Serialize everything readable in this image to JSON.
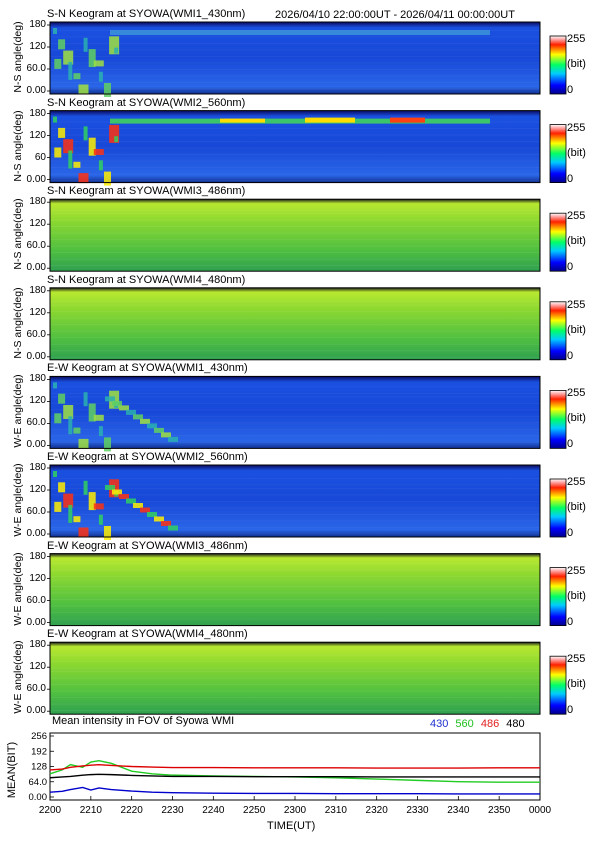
{
  "header": {
    "time_range": "2026/04/10 22:00:00UT - 2026/04/11 00:00:00UT"
  },
  "colorbar": {
    "max_label": "255",
    "unit_label": "(bit)",
    "min_label": "0"
  },
  "keograms": [
    {
      "title": "S-N Keogram at SYOWA(WMI1_430nm)",
      "ylabel": "N-S angle(deg)",
      "yticks": [
        "180",
        "120",
        "60.0",
        "0.00"
      ],
      "base": "blue",
      "aurora": "moderate"
    },
    {
      "title": "S-N Keogram at SYOWA(WMI2_560nm)",
      "ylabel": "N-S angle(deg)",
      "yticks": [
        "180",
        "120",
        "60",
        "0.00"
      ],
      "base": "blue",
      "aurora": "strong"
    },
    {
      "title": "S-N Keogram at SYOWA(WMI3_486nm)",
      "ylabel": "N-S angle(deg)",
      "yticks": [
        "180",
        "120",
        "60.0",
        "0.00"
      ],
      "base": "green",
      "aurora": "none"
    },
    {
      "title": "S-N Keogram at SYOWA(WMI4_480nm)",
      "ylabel": "N-S angle(deg)",
      "yticks": [
        "180",
        "120",
        "60.0",
        "0.00"
      ],
      "base": "green",
      "aurora": "none"
    },
    {
      "title": "E-W Keogram at SYOWA(WMI1_430nm)",
      "ylabel": "W-E angle(deg)",
      "yticks": [
        "180",
        "120",
        "60.0",
        "0.00"
      ],
      "base": "blue",
      "aurora": "moderate"
    },
    {
      "title": "E-W Keogram at SYOWA(WMI2_560nm)",
      "ylabel": "W-E angle(deg)",
      "yticks": [
        "180",
        "120",
        "60.0",
        "0.00"
      ],
      "base": "blue",
      "aurora": "strong"
    },
    {
      "title": "E-W Keogram at SYOWA(WMI3_486nm)",
      "ylabel": "W-E angle(deg)",
      "yticks": [
        "180",
        "120",
        "60.0",
        "0.00"
      ],
      "base": "green",
      "aurora": "none"
    },
    {
      "title": "E-W Keogram at SYOWA(WMI4_480nm)",
      "ylabel": "W-E angle(deg)",
      "yticks": [
        "180",
        "120",
        "60.0",
        "0.00"
      ],
      "base": "green",
      "aurora": "none"
    }
  ],
  "chart_data": {
    "type": "line",
    "title": "Mean intensity in FOV of Syowa WMI",
    "xlabel": "TIME(UT)",
    "ylabel": "MEAN(BIT)",
    "x_tick_labels": [
      "2200",
      "2210",
      "2220",
      "2230",
      "2240",
      "2250",
      "2300",
      "2310",
      "2320",
      "2330",
      "2340",
      "2350",
      "0000"
    ],
    "y_tick_labels": [
      "256",
      "192",
      "128",
      "64.0",
      "0.00"
    ],
    "ylim": [
      0,
      256
    ],
    "x_minutes": [
      0,
      3,
      5,
      8,
      10,
      12,
      15,
      20,
      25,
      30,
      40,
      50,
      60,
      70,
      80,
      90,
      100,
      110,
      120
    ],
    "series": [
      {
        "name": "430",
        "color": "#0000cc",
        "values": [
          30,
          33,
          40,
          48,
          38,
          46,
          40,
          34,
          30,
          28,
          26,
          25,
          25,
          24,
          24,
          24,
          23,
          23,
          23
        ]
      },
      {
        "name": "560",
        "color": "#22cc22",
        "values": [
          100,
          115,
          135,
          125,
          145,
          150,
          140,
          110,
          100,
          95,
          92,
          90,
          88,
          85,
          80,
          75,
          70,
          68,
          68
        ]
      },
      {
        "name": "486",
        "color": "#dd0000",
        "values": [
          115,
          118,
          125,
          130,
          133,
          135,
          132,
          128,
          126,
          124,
          124,
          123,
          123,
          123,
          122,
          122,
          122,
          123,
          123
        ]
      },
      {
        "name": "480",
        "color": "#000000",
        "values": [
          85,
          88,
          90,
          95,
          97,
          98,
          97,
          94,
          92,
          90,
          90,
          89,
          89,
          89,
          88,
          88,
          88,
          88,
          88
        ]
      }
    ],
    "legend_position": "top-right"
  },
  "legend": {
    "items": [
      {
        "label": "430",
        "color": "#2030d0"
      },
      {
        "label": "560",
        "color": "#20c020"
      },
      {
        "label": "486",
        "color": "#e02020"
      },
      {
        "label": "480",
        "color": "#000000"
      }
    ]
  }
}
